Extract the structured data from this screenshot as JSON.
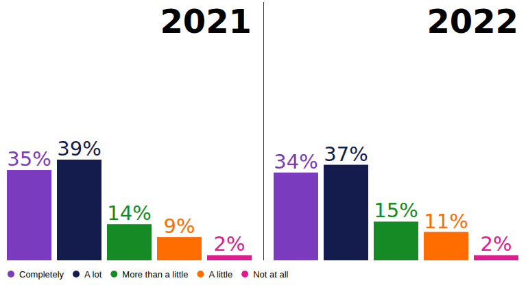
{
  "chart_data": {
    "type": "bar",
    "categories": [
      "Completely",
      "A lot",
      "More than a little",
      "A little",
      "Not at all"
    ],
    "colors": [
      "#7b3bbf",
      "#141c4d",
      "#168a24",
      "#ff6d00",
      "#e3198f"
    ],
    "series": [
      {
        "name": "2021",
        "values": [
          35,
          39,
          14,
          9,
          2
        ],
        "value_labels": [
          "35%",
          "39%",
          "14%",
          "9%",
          "2%"
        ]
      },
      {
        "name": "2022",
        "values": [
          34,
          37,
          15,
          11,
          2
        ],
        "value_labels": [
          "34%",
          "37%",
          "15%",
          "11%",
          "2%"
        ]
      }
    ],
    "ylim": [
      0,
      100
    ],
    "data_labels": true,
    "tick_labels": false,
    "legend": "bottom-left"
  }
}
